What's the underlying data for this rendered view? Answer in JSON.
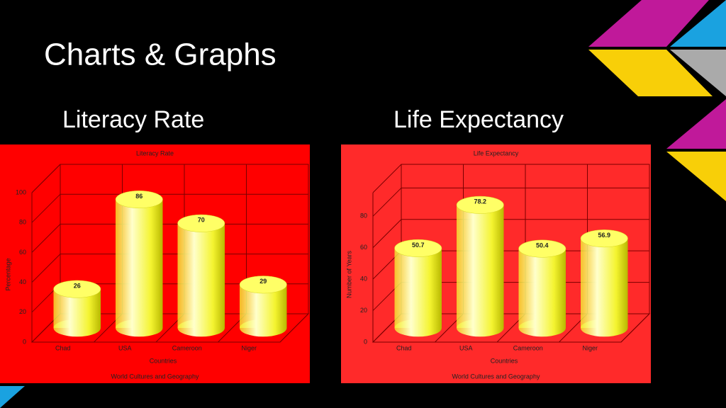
{
  "slide": {
    "title": "Charts & Graphs"
  },
  "chart_data": [
    {
      "type": "bar",
      "heading": "Literacy Rate",
      "title": "Literacy Rate",
      "categories": [
        "Chad",
        "USA",
        "Cameroon",
        "Niger"
      ],
      "values": [
        26,
        86,
        70,
        29
      ],
      "color": "#f4f430",
      "background": "#ff0000",
      "xlabel": "Countries",
      "ylabel": "Percentage",
      "footer": "World Cultures and Geography",
      "ylim": [
        0,
        100
      ],
      "yticks": [
        0,
        20,
        40,
        60,
        80,
        100
      ],
      "grid": true
    },
    {
      "type": "bar",
      "heading": "Life Expectancy",
      "title": "Life Expectancy",
      "categories": [
        "Chad",
        "USA",
        "Cameroon",
        "Niger"
      ],
      "values": [
        50.7,
        78.2,
        50.4,
        56.9
      ],
      "color": "#f4f430",
      "background": "#ff2a2a",
      "xlabel": "Countries",
      "ylabel": "Number of Years",
      "footer": "World Cultures and Geography",
      "ylim": [
        0,
        95
      ],
      "yticks": [
        0,
        20,
        40,
        60,
        80
      ],
      "grid": true
    }
  ]
}
